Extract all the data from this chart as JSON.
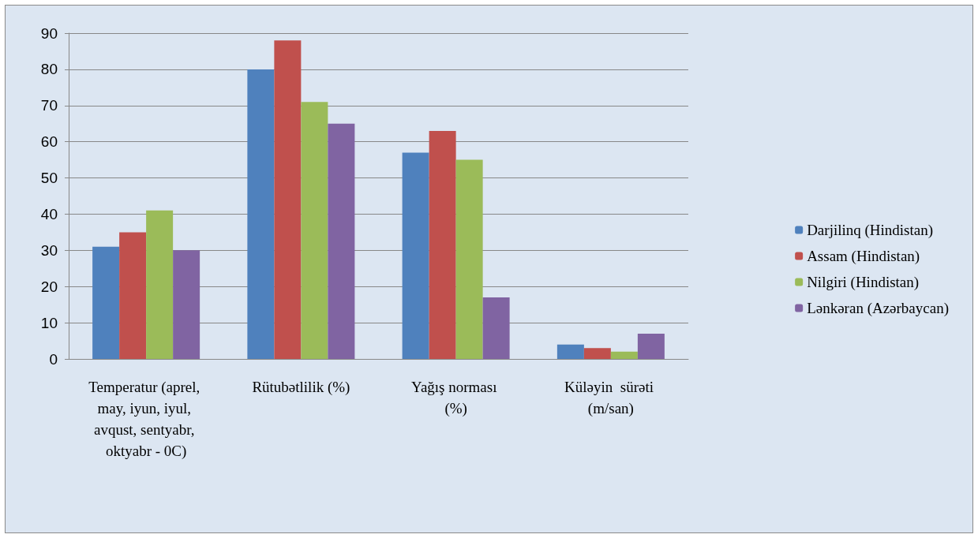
{
  "chart_data": {
    "type": "bar",
    "categories": [
      "Temperatur (aprel, may, iyun, iyul, avqust, sentyabr, oktyabr - 0C)",
      "Rütubətlilik (%)",
      "Yağış norması (%)",
      "Küləyin  sürəti (m/san)"
    ],
    "series": [
      {
        "name": "Darjilinq (Hindistan)",
        "color": "#4f81bd",
        "values": [
          31,
          80,
          57,
          4
        ]
      },
      {
        "name": "Assam (Hindistan)",
        "color": "#c0504d",
        "values": [
          35,
          88,
          63,
          3
        ]
      },
      {
        "name": "Nilgiri (Hindistan)",
        "color": "#9bbb59",
        "values": [
          41,
          71,
          55,
          2
        ]
      },
      {
        "name": "Lənkəran (Azərbaycan)",
        "color": "#8064a2",
        "values": [
          30,
          65,
          17,
          7
        ]
      }
    ],
    "ylim": [
      0,
      90
    ],
    "yticks": [
      0,
      10,
      20,
      30,
      40,
      50,
      60,
      70,
      80,
      90
    ],
    "grid": "y",
    "legend": "right"
  }
}
